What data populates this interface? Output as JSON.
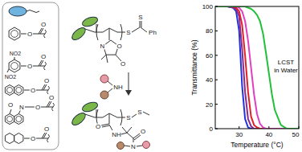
{
  "panel": {
    "substituent_labels": [
      [
        "O",
        "O"
      ],
      [
        "O",
        "O",
        "NO2",
        "NO2"
      ],
      [
        "O",
        "O"
      ],
      [
        "O",
        "O",
        "N",
        "O"
      ],
      [
        "O",
        "O"
      ]
    ],
    "monomer_labels": [
      "S",
      "S",
      "Ph",
      "O",
      "N",
      "O"
    ],
    "amine_label": "NH",
    "product_labels": [
      "S",
      "S",
      "O",
      "NH",
      "O",
      "N"
    ]
  },
  "chart_data": {
    "type": "line",
    "xlabel": "Temperature (°C)",
    "ylabel": "Transmittance (%)",
    "annotations": [
      "LCST",
      "in Water"
    ],
    "x": [
      22,
      26,
      28,
      29,
      30,
      31,
      32,
      33,
      34,
      35,
      36,
      37,
      38,
      39,
      40,
      41,
      42,
      44,
      46,
      50
    ],
    "series": [
      {
        "color": "#2233dd",
        "values": [
          100,
          100,
          99,
          96,
          80,
          35,
          8,
          1,
          0,
          0,
          0,
          0,
          0,
          0,
          0,
          0,
          0,
          0,
          0,
          0
        ]
      },
      {
        "color": "#8a2a8a",
        "values": [
          100,
          100,
          99,
          98,
          92,
          65,
          30,
          8,
          2,
          0,
          0,
          0,
          0,
          0,
          0,
          0,
          0,
          0,
          0,
          0
        ]
      },
      {
        "color": "#e0202a",
        "values": [
          100,
          100,
          100,
          99,
          96,
          85,
          60,
          30,
          10,
          3,
          1,
          0,
          0,
          0,
          0,
          0,
          0,
          0,
          0,
          0
        ]
      },
      {
        "color": "#e040c0",
        "values": [
          100,
          100,
          100,
          100,
          99,
          96,
          88,
          72,
          50,
          28,
          12,
          4,
          1,
          0,
          0,
          0,
          0,
          0,
          0,
          0
        ]
      },
      {
        "color": "#22c03a",
        "values": [
          100,
          100,
          100,
          100,
          100,
          100,
          100,
          99,
          98,
          96,
          93,
          88,
          78,
          62,
          45,
          28,
          15,
          3,
          0,
          0
        ]
      }
    ],
    "xlim": [
      22,
      50
    ],
    "ylim": [
      0,
      100
    ],
    "xticks": [
      30,
      40,
      50
    ],
    "yticks": [
      0,
      20,
      40,
      60,
      80,
      100
    ]
  }
}
